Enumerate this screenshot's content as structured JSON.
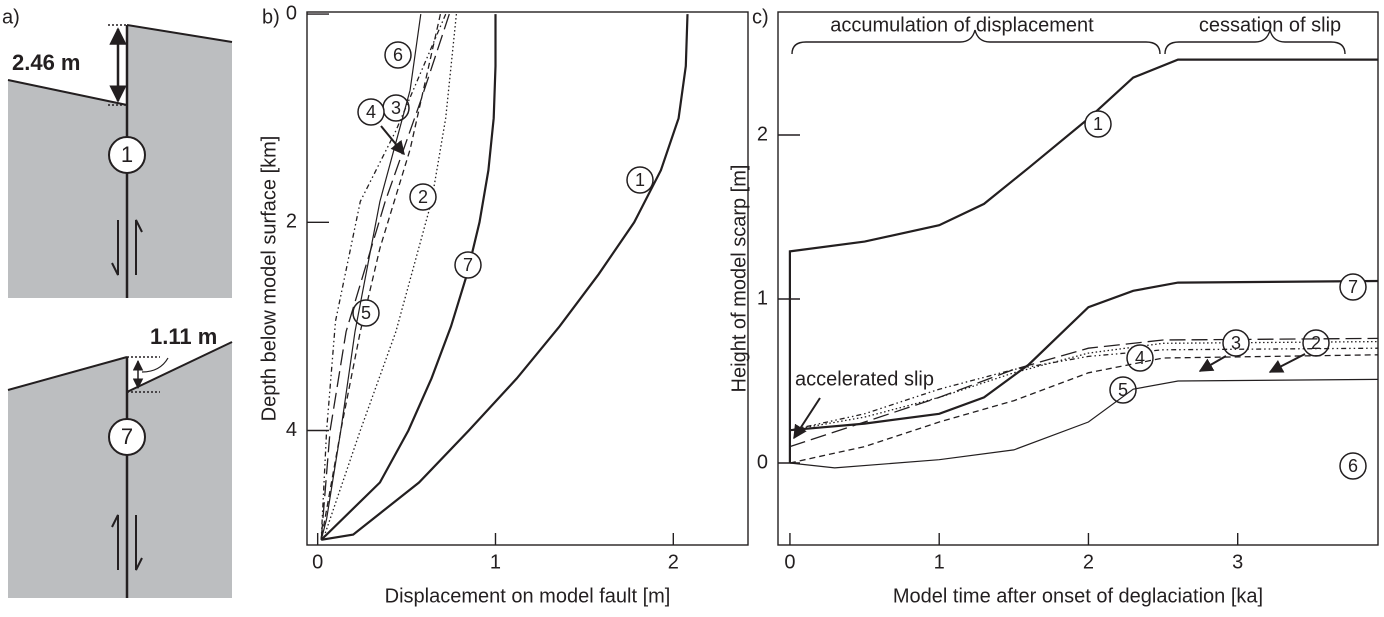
{
  "diagram": {
    "panel_label": "a)",
    "top": {
      "offset": "2.46 m",
      "fault_number": "1"
    },
    "bottom": {
      "offset": "1.11 m",
      "fault_number": "7"
    }
  },
  "chart_data": [
    {
      "type": "line",
      "panel_label": "b)",
      "x_label": "Displacement on model fault [m]",
      "y_label": "Depth below model surface [km]",
      "xlim": [
        -0.06,
        2.42
      ],
      "ylim": [
        -0.02,
        5.1
      ],
      "y_inverted": true,
      "xticks": [
        0,
        1,
        2
      ],
      "yticks": [
        0,
        2,
        4
      ],
      "series": [
        {
          "name": "1",
          "color": "#231f20",
          "style": "solid",
          "width": 2.2,
          "x": [
            2.08,
            2.07,
            2.03,
            1.93,
            1.78,
            1.58,
            1.36,
            1.12,
            0.85,
            0.57,
            0.2,
            0.02
          ],
          "values": [
            0,
            0.5,
            1,
            1.5,
            2,
            2.5,
            3,
            3.5,
            4,
            4.5,
            5,
            5.05
          ]
        },
        {
          "name": "2",
          "color": "#231f20",
          "style": "dotted",
          "width": 1.3,
          "x": [
            0.78,
            0.72,
            0.64,
            0.44,
            0.24,
            0.03
          ],
          "values": [
            0,
            1,
            1.8,
            3.05,
            4,
            5.05
          ]
        },
        {
          "name": "3",
          "color": "#231f20",
          "style": "longdash",
          "width": 1.3,
          "x": [
            0.74,
            0.58,
            0.38,
            0.16,
            0.07,
            0.02
          ],
          "values": [
            0,
            0.83,
            1.8,
            3.05,
            4,
            5.05
          ]
        },
        {
          "name": "4",
          "color": "#231f20",
          "style": "dashdot",
          "width": 1.3,
          "x": [
            0.72,
            0.44,
            0.24,
            0.1,
            0.05,
            0.02
          ],
          "values": [
            0,
            1.12,
            1.8,
            2.95,
            4,
            5.05
          ]
        },
        {
          "name": "5",
          "color": "#231f20",
          "style": "dashed",
          "width": 1.3,
          "x": [
            0.69,
            0.52,
            0.35,
            0.24,
            0.13,
            0.02
          ],
          "values": [
            0,
            1.3,
            2.25,
            3.05,
            4,
            5.05
          ]
        },
        {
          "name": "6",
          "color": "#231f20",
          "style": "solid",
          "width": 1.2,
          "x": [
            0.58,
            0.52,
            0.35,
            0.21,
            0.13,
            0.05,
            0.02
          ],
          "values": [
            0,
            0.73,
            1.8,
            3.05,
            4,
            4.85,
            5.05
          ]
        },
        {
          "name": "7",
          "color": "#231f20",
          "style": "solid",
          "width": 2.2,
          "x": [
            1.0,
            1.0,
            0.99,
            0.96,
            0.91,
            0.84,
            0.75,
            0.64,
            0.51,
            0.35,
            0.05,
            0.02
          ],
          "values": [
            0,
            0.5,
            1,
            1.5,
            2,
            2.5,
            3,
            3.5,
            4,
            4.5,
            5,
            5.05
          ]
        }
      ]
    },
    {
      "type": "line",
      "panel_label": "c)",
      "x_label": "Model time after onset of deglaciation [ka]",
      "y_label": "Height of model scarp [m]",
      "xlim": [
        -0.08,
        3.94
      ],
      "ylim": [
        -0.5,
        2.75
      ],
      "xticks": [
        0,
        1,
        2,
        3
      ],
      "yticks": [
        0,
        1,
        2
      ],
      "annotations": [
        "accumulation of displacement",
        "cessation of slip",
        "accelerated slip"
      ],
      "series": [
        {
          "name": "1",
          "color": "#231f20",
          "style": "solid",
          "width": 2.2,
          "x": [
            0,
            0,
            0.5,
            1,
            1.3,
            1.6,
            2,
            2.3,
            2.6,
            3.94
          ],
          "values": [
            0,
            1.29,
            1.35,
            1.45,
            1.58,
            1.8,
            2.1,
            2.35,
            2.46,
            2.46
          ]
        },
        {
          "name": "2",
          "color": "#231f20",
          "style": "dotted",
          "width": 1.3,
          "x": [
            0,
            0.5,
            1,
            1.5,
            2,
            2.5,
            3.94
          ],
          "values": [
            0.2,
            0.28,
            0.4,
            0.55,
            0.67,
            0.73,
            0.74
          ]
        },
        {
          "name": "3",
          "color": "#231f20",
          "style": "longdash",
          "width": 1.3,
          "x": [
            0,
            0.5,
            1,
            1.5,
            2,
            2.5,
            3.94
          ],
          "values": [
            0.1,
            0.25,
            0.4,
            0.57,
            0.7,
            0.75,
            0.76
          ]
        },
        {
          "name": "4",
          "color": "#231f20",
          "style": "dashdot",
          "width": 1.3,
          "x": [
            0,
            0.5,
            1,
            1.5,
            2,
            2.5,
            3.94
          ],
          "values": [
            0.2,
            0.3,
            0.45,
            0.57,
            0.65,
            0.69,
            0.7
          ]
        },
        {
          "name": "5",
          "color": "#231f20",
          "style": "dashed",
          "width": 1.3,
          "x": [
            0,
            0.5,
            1,
            1.5,
            2,
            2.5,
            3.94
          ],
          "values": [
            0,
            0.1,
            0.25,
            0.38,
            0.55,
            0.64,
            0.66
          ]
        },
        {
          "name": "6",
          "color": "#231f20",
          "style": "solid",
          "width": 1.2,
          "x": [
            0,
            0.3,
            1,
            1.5,
            2,
            2.3,
            2.6,
            3.94
          ],
          "values": [
            0,
            -0.03,
            0.02,
            0.08,
            0.25,
            0.45,
            0.5,
            0.51
          ]
        },
        {
          "name": "7",
          "color": "#231f20",
          "style": "solid",
          "width": 2.2,
          "x": [
            0,
            0.5,
            1,
            1.3,
            1.6,
            2,
            2.3,
            2.6,
            3.94
          ],
          "values": [
            0.2,
            0.24,
            0.3,
            0.4,
            0.6,
            0.95,
            1.05,
            1.1,
            1.11
          ]
        }
      ]
    }
  ]
}
